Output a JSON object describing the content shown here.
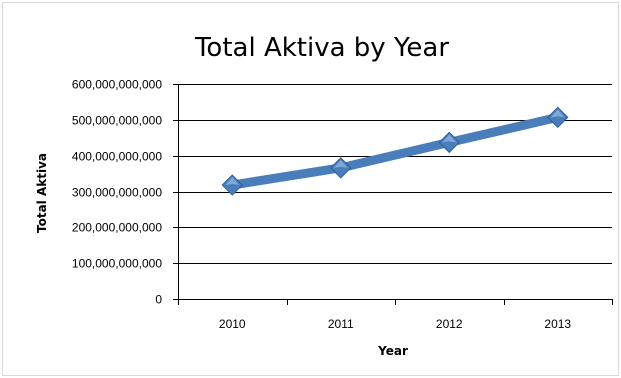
{
  "chart_data": {
    "type": "line",
    "title": "Total Aktiva by Year",
    "xlabel": "Year",
    "ylabel": "Total Aktiva",
    "categories": [
      "2010",
      "2011",
      "2012",
      "2013"
    ],
    "series": [
      {
        "values": [
          318000000000,
          366000000000,
          437000000000,
          507000000000
        ]
      }
    ],
    "ylim": [
      0,
      600000000000
    ],
    "yticks": [
      0,
      100000000000,
      200000000000,
      300000000000,
      400000000000,
      500000000000,
      600000000000
    ],
    "ytick_labels": [
      "0",
      "100,000,000,000",
      "200,000,000,000",
      "300,000,000,000",
      "400,000,000,000",
      "500,000,000,000",
      "600,000,000,000"
    ],
    "grid": true,
    "legend": "none",
    "series_color": "#4a7ebb",
    "marker": "diamond"
  }
}
